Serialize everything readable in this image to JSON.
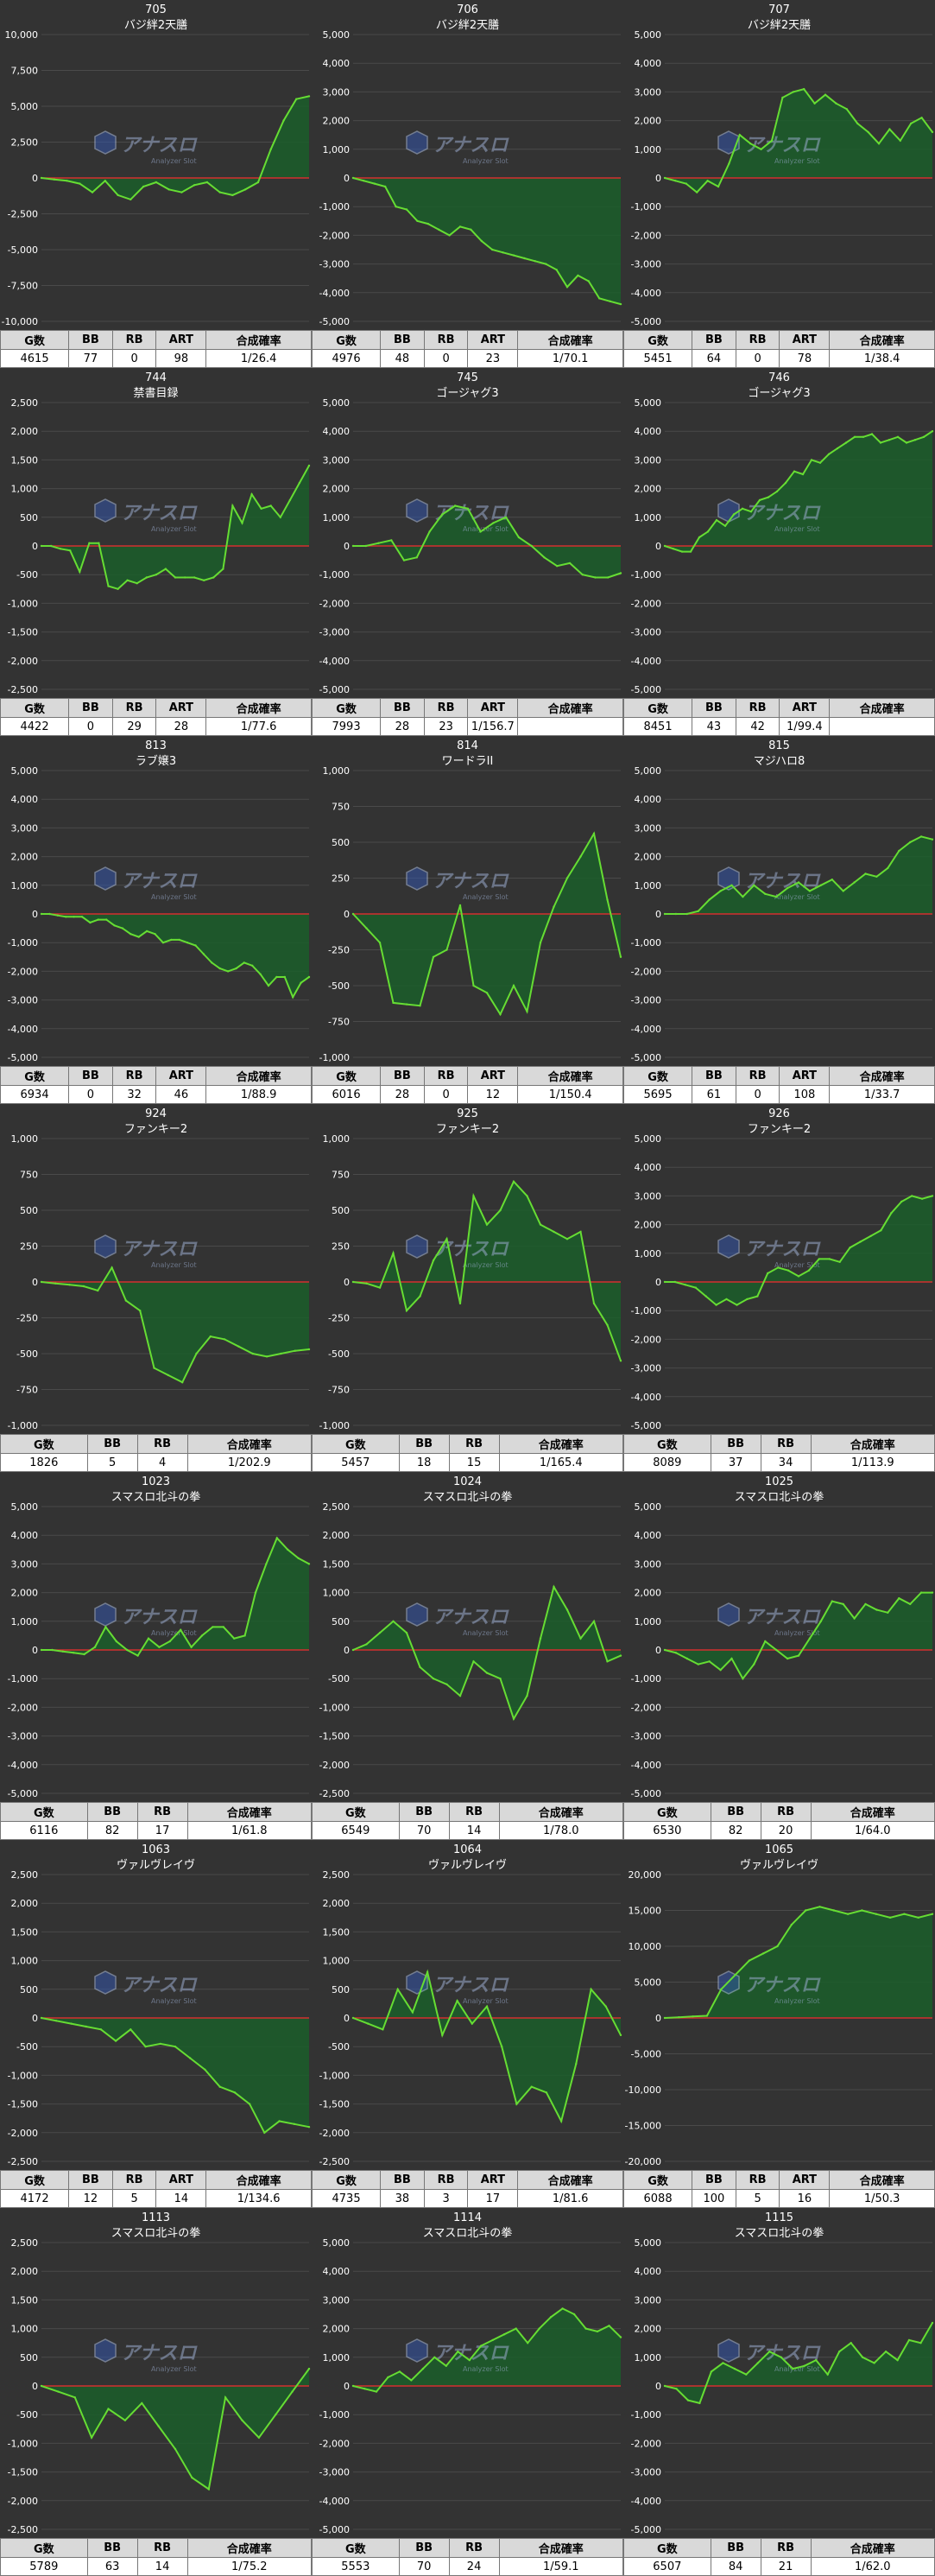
{
  "chart_data": [
    {
      "type": "line",
      "id": "705",
      "model": "バジ絆2天膳",
      "ylim": [
        -10000,
        10000
      ],
      "yticks": [
        10000,
        7500,
        5000,
        2500,
        0,
        -2500,
        -5000,
        -7500,
        -10000
      ],
      "values": [
        0,
        -100,
        -200,
        -400,
        -1000,
        -200,
        -1200,
        -1500,
        -600,
        -300,
        -800,
        -1000,
        -500,
        -300,
        -1000,
        -1200,
        -800,
        -300,
        2000,
        4000,
        5500,
        5700
      ],
      "stats": {
        "headers": [
          "G数",
          "BB",
          "RB",
          "ART",
          "合成確率"
        ],
        "values": [
          "4615",
          "77",
          "0",
          "98",
          "1/26.4"
        ]
      }
    },
    {
      "type": "line",
      "id": "706",
      "model": "バジ絆2天膳",
      "ylim": [
        -5000,
        5000
      ],
      "yticks": [
        5000,
        4000,
        3000,
        2000,
        1000,
        0,
        -1000,
        -2000,
        -3000,
        -4000,
        -5000
      ],
      "values": [
        0,
        -100,
        -200,
        -300,
        -1000,
        -1100,
        -1500,
        -1600,
        -1800,
        -2000,
        -1700,
        -1800,
        -2200,
        -2500,
        -2600,
        -2700,
        -2800,
        -2900,
        -3000,
        -3200,
        -3800,
        -3400,
        -3600,
        -4200,
        -4300,
        -4400
      ],
      "stats": {
        "headers": [
          "G数",
          "BB",
          "RB",
          "ART",
          "合成確率"
        ],
        "values": [
          "4976",
          "48",
          "0",
          "23",
          "1/70.1"
        ]
      }
    },
    {
      "type": "line",
      "id": "707",
      "model": "バジ絆2天膳",
      "ylim": [
        -5000,
        5000
      ],
      "yticks": [
        5000,
        4000,
        3000,
        2000,
        1000,
        0,
        -1000,
        -2000,
        -3000,
        -4000,
        -5000
      ],
      "values": [
        0,
        -100,
        -200,
        -500,
        -100,
        -300,
        500,
        1500,
        1200,
        1000,
        1300,
        2800,
        3000,
        3100,
        2600,
        2900,
        2600,
        2400,
        1900,
        1600,
        1200,
        1700,
        1300,
        1900,
        2100,
        1600
      ],
      "stats": {
        "headers": [
          "G数",
          "BB",
          "RB",
          "ART",
          "合成確率"
        ],
        "values": [
          "5451",
          "64",
          "0",
          "78",
          "1/38.4"
        ]
      }
    },
    {
      "type": "line",
      "id": "744",
      "model": "禁書目録",
      "ylim": [
        -2500,
        2500
      ],
      "yticks": [
        2500,
        2000,
        1500,
        1000,
        500,
        0,
        -500,
        -1000,
        -1500,
        -2000,
        -2500
      ],
      "values": [
        0,
        0,
        -50,
        -80,
        -450,
        50,
        50,
        -700,
        -750,
        -600,
        -650,
        -550,
        -500,
        -400,
        -550,
        -550,
        -550,
        -600,
        -550,
        -400,
        700,
        400,
        900,
        650,
        700,
        500,
        800,
        1100,
        1400
      ],
      "stats": {
        "headers": [
          "G数",
          "BB",
          "RB",
          "ART",
          "合成確率"
        ],
        "values": [
          "4422",
          "0",
          "29",
          "28",
          "1/77.6"
        ]
      }
    },
    {
      "type": "line",
      "id": "745",
      "model": "ゴージャグ3",
      "ylim": [
        -5000,
        5000
      ],
      "yticks": [
        5000,
        4000,
        3000,
        2000,
        1000,
        0,
        -1000,
        -2000,
        -3000,
        -4000,
        -5000
      ],
      "values": [
        0,
        0,
        100,
        200,
        -500,
        -400,
        500,
        1100,
        1400,
        1300,
        500,
        800,
        1000,
        300,
        0,
        -400,
        -700,
        -600,
        -1000,
        -1100,
        -1100,
        -950
      ],
      "stats": {
        "headers": [
          "G数",
          "BB",
          "RB",
          "ART",
          "合成確率"
        ],
        "values": [
          "7993",
          "28",
          "23",
          "1/156.7",
          ""
        ]
      }
    },
    {
      "type": "line",
      "id": "746",
      "model": "ゴージャグ3",
      "ylim": [
        -5000,
        5000
      ],
      "yticks": [
        5000,
        4000,
        3000,
        2000,
        1000,
        0,
        -1000,
        -2000,
        -3000,
        -4000,
        -5000
      ],
      "values": [
        0,
        -100,
        -200,
        -200,
        300,
        500,
        900,
        700,
        1100,
        1300,
        1200,
        1600,
        1700,
        1900,
        2200,
        2600,
        2500,
        3000,
        2900,
        3200,
        3400,
        3600,
        3800,
        3800,
        3900,
        3600,
        3700,
        3800,
        3600,
        3700,
        3800,
        4000
      ],
      "stats": {
        "headers": [
          "G数",
          "BB",
          "RB",
          "ART",
          "合成確率"
        ],
        "values": [
          "8451",
          "43",
          "42",
          "1/99.4",
          ""
        ]
      }
    },
    {
      "type": "line",
      "id": "813",
      "model": "ラブ嬢3",
      "ylim": [
        -5000,
        5000
      ],
      "yticks": [
        5000,
        4000,
        3000,
        2000,
        1000,
        0,
        -1000,
        -2000,
        -3000,
        -4000,
        -5000
      ],
      "values": [
        0,
        0,
        -50,
        -100,
        -100,
        -100,
        -300,
        -200,
        -200,
        -400,
        -500,
        -700,
        -800,
        -600,
        -700,
        -1000,
        -900,
        -900,
        -1000,
        -1100,
        -1400,
        -1700,
        -1900,
        -2000,
        -1900,
        -1700,
        -1800,
        -2100,
        -2500,
        -2200,
        -2200,
        -2900,
        -2400,
        -2200
      ],
      "stats": {
        "headers": [
          "G数",
          "BB",
          "RB",
          "ART",
          "合成確率"
        ],
        "values": [
          "6934",
          "0",
          "32",
          "46",
          "1/88.9"
        ]
      }
    },
    {
      "type": "line",
      "id": "814",
      "model": "ワードラII",
      "ylim": [
        -1000,
        1000
      ],
      "yticks": [
        1000,
        750,
        500,
        250,
        0,
        -250,
        -500,
        -750,
        -1000
      ],
      "values": [
        0,
        -100,
        -200,
        -620,
        -630,
        -640,
        -300,
        -250,
        60,
        -500,
        -550,
        -700,
        -500,
        -680,
        -200,
        50,
        250,
        400,
        560,
        100,
        -300
      ],
      "stats": {
        "headers": [
          "G数",
          "BB",
          "RB",
          "ART",
          "合成確率"
        ],
        "values": [
          "6016",
          "28",
          "0",
          "12",
          "1/150.4"
        ]
      }
    },
    {
      "type": "line",
      "id": "815",
      "model": "マジハロ8",
      "ylim": [
        -5000,
        5000
      ],
      "yticks": [
        5000,
        4000,
        3000,
        2000,
        1000,
        0,
        -1000,
        -2000,
        -3000,
        -4000,
        -5000
      ],
      "values": [
        0,
        0,
        0,
        100,
        500,
        800,
        1000,
        600,
        1000,
        700,
        600,
        900,
        1100,
        800,
        1000,
        1200,
        800,
        1100,
        1400,
        1300,
        1600,
        2200,
        2500,
        2700,
        2600
      ],
      "stats": {
        "headers": [
          "G数",
          "BB",
          "RB",
          "ART",
          "合成確率"
        ],
        "values": [
          "5695",
          "61",
          "0",
          "108",
          "1/33.7"
        ]
      }
    },
    {
      "type": "line",
      "id": "924",
      "model": "ファンキー2",
      "ylim": [
        -1000,
        1000
      ],
      "yticks": [
        1000,
        750,
        500,
        250,
        0,
        -250,
        -500,
        -750,
        -1000
      ],
      "values": [
        0,
        -10,
        -20,
        -30,
        -60,
        100,
        -130,
        -200,
        -600,
        -650,
        -700,
        -500,
        -380,
        -400,
        -450,
        -500,
        -520,
        -500,
        -480,
        -470
      ],
      "stats": {
        "headers": [
          "G数",
          "BB",
          "RB",
          "合成確率"
        ],
        "values": [
          "1826",
          "5",
          "4",
          "1/202.9"
        ]
      }
    },
    {
      "type": "line",
      "id": "925",
      "model": "ファンキー2",
      "ylim": [
        -1000,
        1000
      ],
      "yticks": [
        1000,
        750,
        500,
        250,
        0,
        -250,
        -500,
        -750,
        -1000
      ],
      "values": [
        0,
        -10,
        -40,
        200,
        -200,
        -100,
        150,
        300,
        -150,
        600,
        400,
        500,
        700,
        600,
        400,
        350,
        300,
        350,
        -150,
        -300,
        -550
      ],
      "stats": {
        "headers": [
          "G数",
          "BB",
          "RB",
          "合成確率"
        ],
        "values": [
          "5457",
          "18",
          "15",
          "1/165.4"
        ]
      }
    },
    {
      "type": "line",
      "id": "926",
      "model": "ファンキー2",
      "ylim": [
        -5000,
        5000
      ],
      "yticks": [
        5000,
        4000,
        3000,
        2000,
        1000,
        0,
        -1000,
        -2000,
        -3000,
        -4000,
        -5000
      ],
      "values": [
        0,
        0,
        -100,
        -200,
        -500,
        -800,
        -600,
        -800,
        -600,
        -500,
        300,
        500,
        400,
        200,
        400,
        800,
        800,
        700,
        1200,
        1400,
        1600,
        1800,
        2400,
        2800,
        3000,
        2900,
        3000
      ],
      "stats": {
        "headers": [
          "G数",
          "BB",
          "RB",
          "合成確率"
        ],
        "values": [
          "8089",
          "37",
          "34",
          "1/113.9"
        ]
      }
    },
    {
      "type": "line",
      "id": "1023",
      "model": "スマスロ北斗の拳",
      "ylim": [
        -5000,
        5000
      ],
      "yticks": [
        5000,
        4000,
        3000,
        2000,
        1000,
        0,
        -1000,
        -2000,
        -3000,
        -4000,
        -5000
      ],
      "values": [
        0,
        0,
        -50,
        -100,
        -150,
        100,
        800,
        300,
        0,
        -200,
        400,
        100,
        300,
        700,
        100,
        500,
        800,
        800,
        400,
        500,
        2000,
        3000,
        3900,
        3500,
        3200,
        3000
      ],
      "stats": {
        "headers": [
          "G数",
          "BB",
          "RB",
          "合成確率"
        ],
        "values": [
          "6116",
          "82",
          "17",
          "1/61.8"
        ]
      }
    },
    {
      "type": "line",
      "id": "1024",
      "model": "スマスロ北斗の拳",
      "ylim": [
        -2500,
        2500
      ],
      "yticks": [
        2500,
        2000,
        1500,
        1000,
        500,
        0,
        -500,
        -1000,
        -1500,
        -2000,
        -2500
      ],
      "values": [
        0,
        100,
        300,
        500,
        300,
        -300,
        -500,
        -600,
        -800,
        -200,
        -400,
        -500,
        -1200,
        -800,
        200,
        1100,
        700,
        200,
        500,
        -200,
        -100
      ],
      "stats": {
        "headers": [
          "G数",
          "BB",
          "RB",
          "合成確率"
        ],
        "values": [
          "6549",
          "70",
          "14",
          "1/78.0"
        ]
      }
    },
    {
      "type": "line",
      "id": "1025",
      "model": "スマスロ北斗の拳",
      "ylim": [
        -5000,
        5000
      ],
      "yticks": [
        5000,
        4000,
        3000,
        2000,
        1000,
        0,
        -1000,
        -2000,
        -3000,
        -4000,
        -5000
      ],
      "values": [
        0,
        -100,
        -300,
        -500,
        -400,
        -700,
        -300,
        -1000,
        -500,
        300,
        0,
        -300,
        -200,
        400,
        1000,
        1700,
        1600,
        1100,
        1600,
        1400,
        1300,
        1800,
        1600,
        2000,
        2000
      ],
      "stats": {
        "headers": [
          "G数",
          "BB",
          "RB",
          "合成確率"
        ],
        "values": [
          "6530",
          "82",
          "20",
          "1/64.0"
        ]
      }
    },
    {
      "type": "line",
      "id": "1063",
      "model": "ヴァルヴレイヴ",
      "ylim": [
        -2500,
        2500
      ],
      "yticks": [
        2500,
        2000,
        1500,
        1000,
        500,
        0,
        -500,
        -1000,
        -1500,
        -2000,
        -2500
      ],
      "values": [
        0,
        -50,
        -100,
        -150,
        -200,
        -400,
        -200,
        -500,
        -450,
        -500,
        -700,
        -900,
        -1200,
        -1300,
        -1500,
        -2000,
        -1800,
        -1850,
        -1900
      ],
      "stats": {
        "headers": [
          "G数",
          "BB",
          "RB",
          "ART",
          "合成確率"
        ],
        "values": [
          "4172",
          "12",
          "5",
          "14",
          "1/134.6"
        ]
      }
    },
    {
      "type": "line",
      "id": "1064",
      "model": "ヴァルヴレイヴ",
      "ylim": [
        -2500,
        2500
      ],
      "yticks": [
        2500,
        2000,
        1500,
        1000,
        500,
        0,
        -500,
        -1000,
        -1500,
        -2000,
        -2500
      ],
      "values": [
        0,
        -100,
        -200,
        500,
        100,
        800,
        -300,
        300,
        -100,
        200,
        -500,
        -1500,
        -1200,
        -1300,
        -1800,
        -800,
        500,
        200,
        -300
      ],
      "stats": {
        "headers": [
          "G数",
          "BB",
          "RB",
          "ART",
          "合成確率"
        ],
        "values": [
          "4735",
          "38",
          "3",
          "17",
          "1/81.6"
        ]
      }
    },
    {
      "type": "line",
      "id": "1065",
      "model": "ヴァルヴレイヴ",
      "ylim": [
        -20000,
        20000
      ],
      "yticks": [
        20000,
        15000,
        10000,
        5000,
        0,
        -5000,
        -10000,
        -15000,
        -20000
      ],
      "values": [
        0,
        100,
        200,
        300,
        4000,
        6000,
        8000,
        9000,
        10000,
        13000,
        15000,
        15500,
        15000,
        14500,
        15000,
        14500,
        14000,
        14500,
        14000,
        14500
      ],
      "stats": {
        "headers": [
          "G数",
          "BB",
          "RB",
          "ART",
          "合成確率"
        ],
        "values": [
          "6088",
          "100",
          "5",
          "16",
          "1/50.3"
        ]
      }
    },
    {
      "type": "line",
      "id": "1113",
      "model": "スマスロ北斗の拳",
      "ylim": [
        -2500,
        2500
      ],
      "yticks": [
        2500,
        2000,
        1500,
        1000,
        500,
        0,
        -500,
        -1000,
        -1500,
        -2000,
        -2500
      ],
      "values": [
        0,
        -100,
        -200,
        -900,
        -400,
        -600,
        -300,
        -700,
        -1100,
        -1600,
        -1800,
        -200,
        -600,
        -900,
        -500,
        -100,
        300
      ],
      "stats": {
        "headers": [
          "G数",
          "BB",
          "RB",
          "合成確率"
        ],
        "values": [
          "5789",
          "63",
          "14",
          "1/75.2"
        ]
      }
    },
    {
      "type": "line",
      "id": "1114",
      "model": "スマスロ北斗の拳",
      "ylim": [
        -5000,
        5000
      ],
      "yticks": [
        5000,
        4000,
        3000,
        2000,
        1000,
        0,
        -1000,
        -2000,
        -3000,
        -4000,
        -5000
      ],
      "values": [
        0,
        -100,
        -200,
        300,
        500,
        200,
        600,
        1000,
        700,
        1200,
        900,
        1400,
        1600,
        1800,
        2000,
        1500,
        2000,
        2400,
        2700,
        2500,
        2000,
        1900,
        2100,
        1700
      ],
      "stats": {
        "headers": [
          "G数",
          "BB",
          "RB",
          "合成確率"
        ],
        "values": [
          "5553",
          "70",
          "24",
          "1/59.1"
        ]
      }
    },
    {
      "type": "line",
      "id": "1115",
      "model": "スマスロ北斗の拳",
      "ylim": [
        -5000,
        5000
      ],
      "yticks": [
        5000,
        4000,
        3000,
        2000,
        1000,
        0,
        -1000,
        -2000,
        -3000,
        -4000,
        -5000
      ],
      "values": [
        0,
        -100,
        -500,
        -600,
        500,
        800,
        600,
        400,
        800,
        1200,
        1000,
        600,
        700,
        900,
        400,
        1200,
        1500,
        1000,
        800,
        1200,
        900,
        1600,
        1500,
        2200
      ],
      "stats": {
        "headers": [
          "G数",
          "BB",
          "RB",
          "合成確率"
        ],
        "values": [
          "6507",
          "84",
          "21",
          "1/62.0"
        ]
      }
    }
  ],
  "style": {
    "line": "#66dd33",
    "fill": "#1b5e2a",
    "zero_line": "#d32f2f",
    "grid": "#4a4a4a",
    "background": "#333333"
  },
  "watermark": {
    "main": "アナスロ",
    "sub": "Analyzer Slot"
  }
}
